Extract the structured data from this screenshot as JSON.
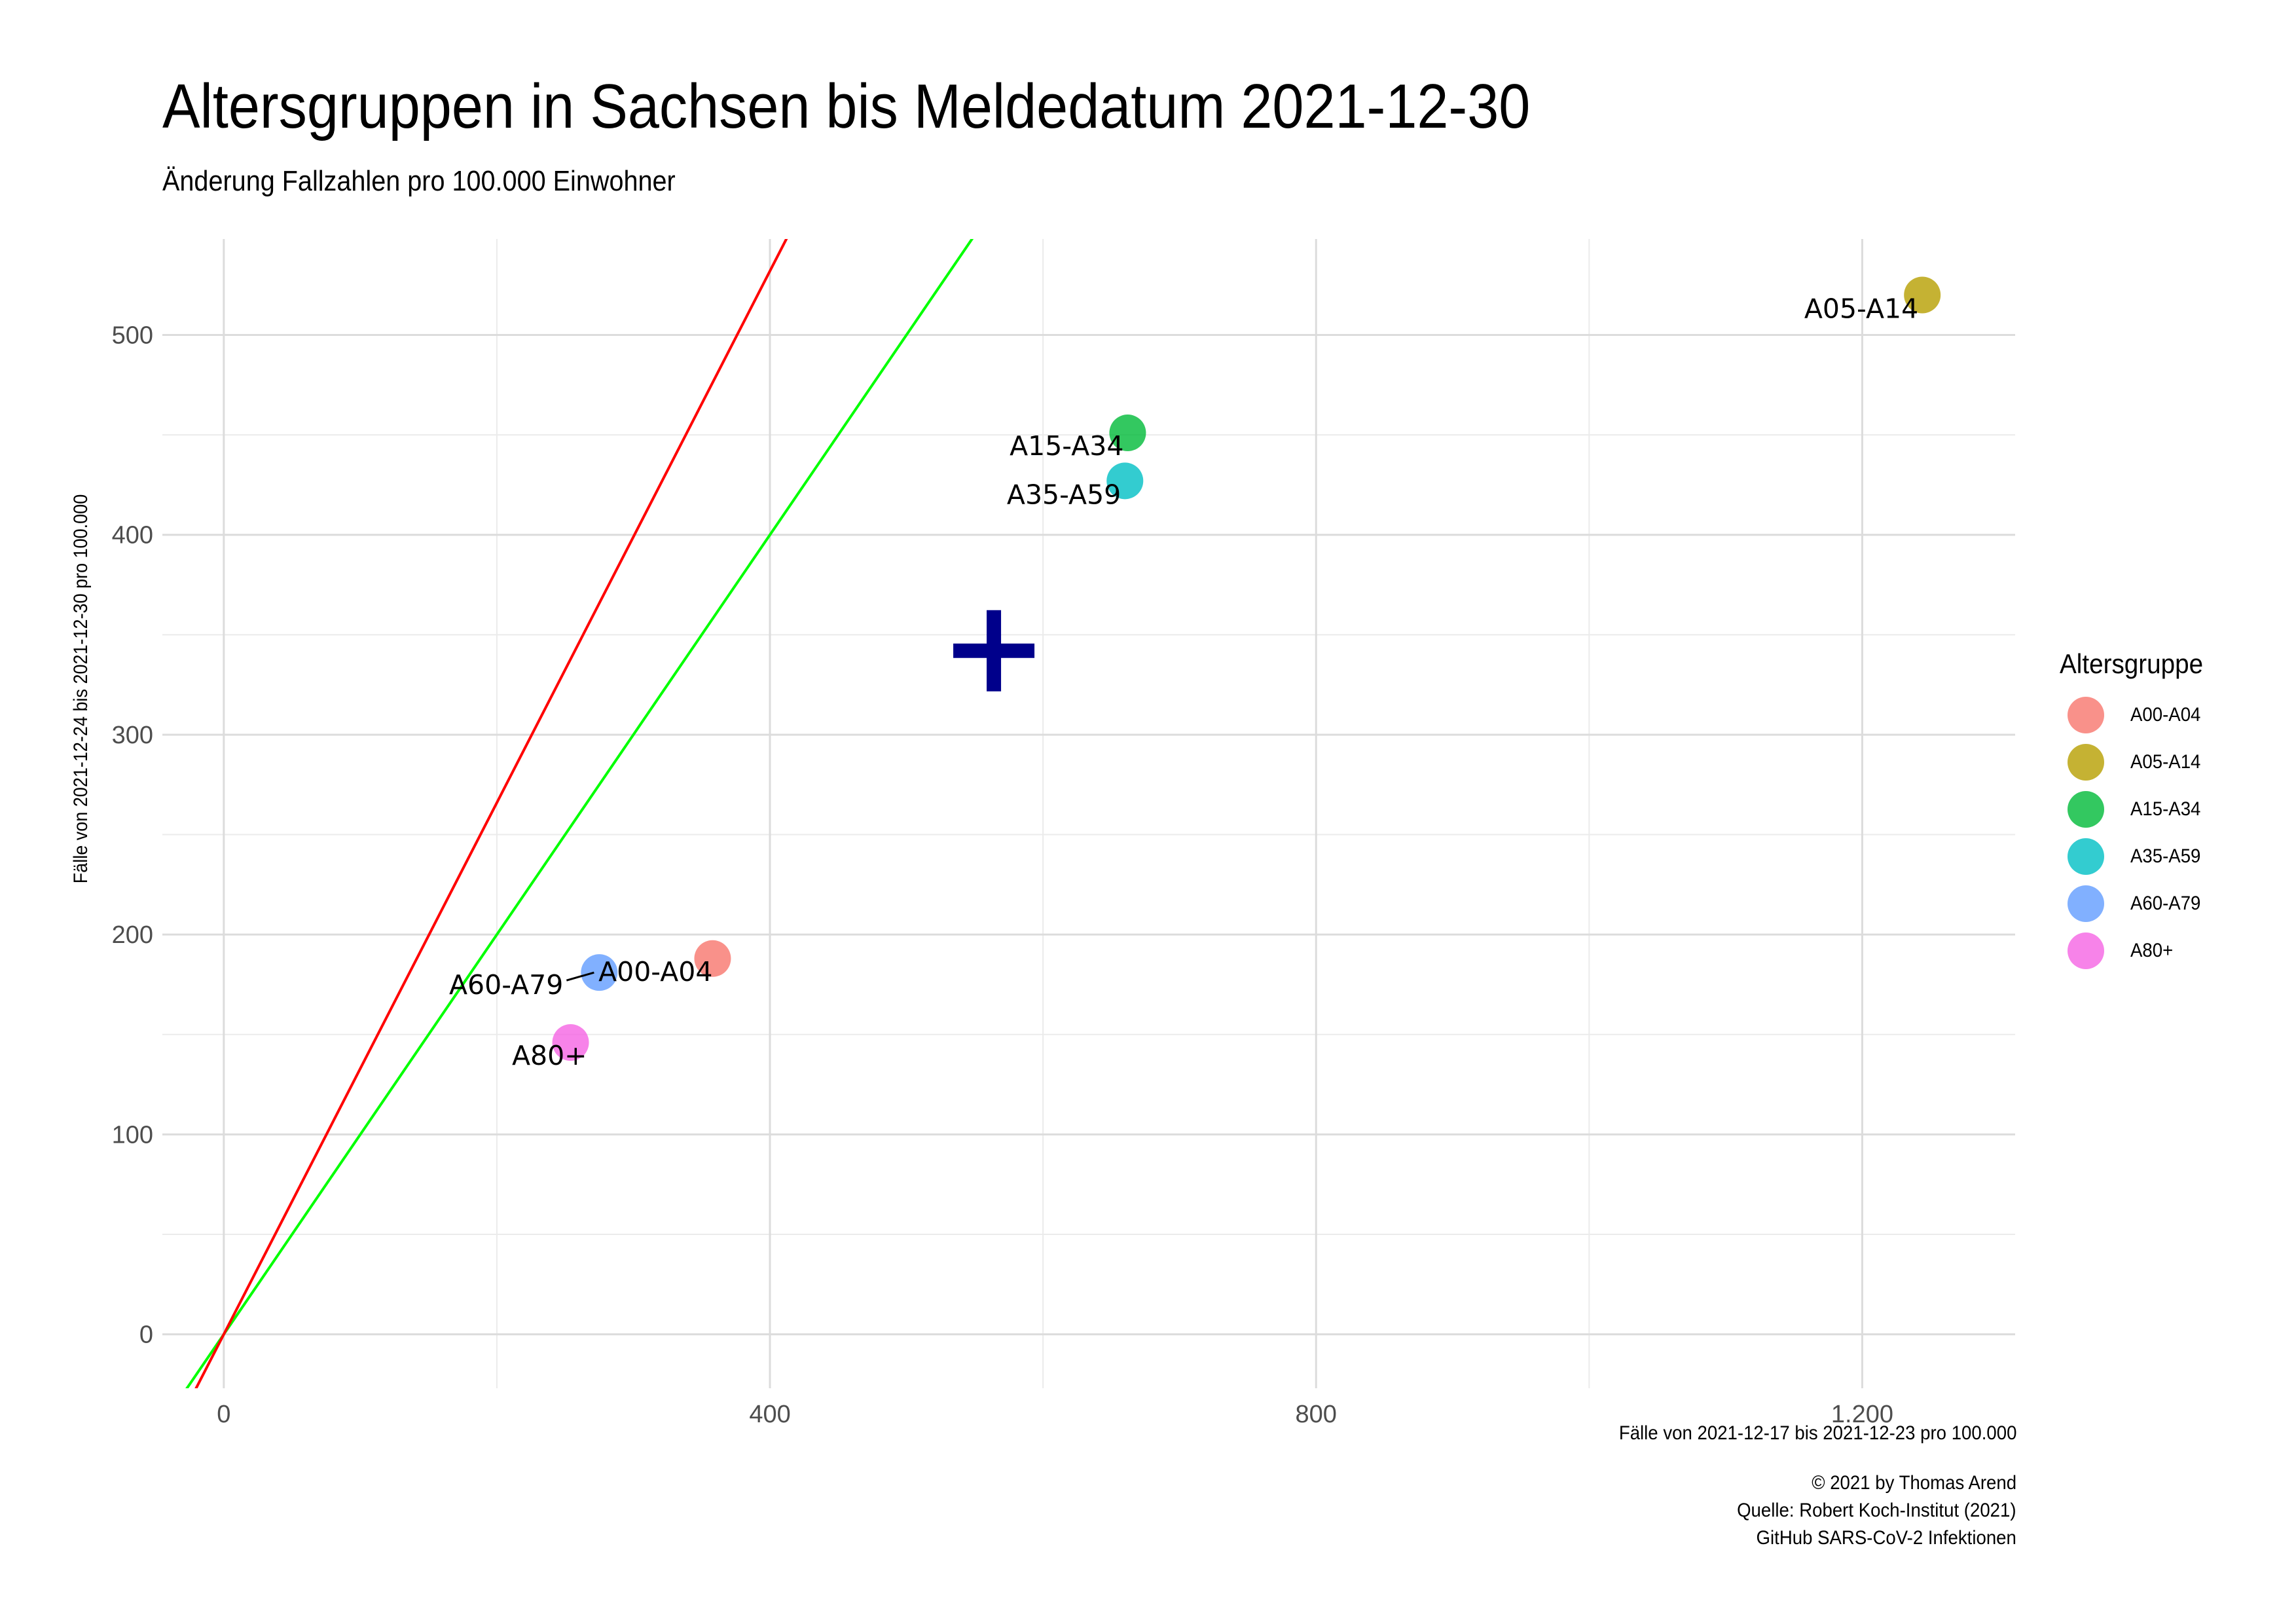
{
  "chart_data": {
    "type": "scatter",
    "title": "Altersgruppen in Sachsen bis Meldedatum 2021-12-30",
    "subtitle": "Änderung Fallzahlen pro 100.000 Einwohner",
    "xlabel": "Fälle von 2021-12-17 bis 2021-12-23 pro 100.000",
    "ylabel": "Fälle von 2021-12-24 bis 2021-12-30 pro 100.000",
    "xlim": [
      -45,
      1312
    ],
    "ylim": [
      -27,
      548
    ],
    "x_ticks": [
      {
        "value": 0,
        "label": "0"
      },
      {
        "value": 400,
        "label": "400"
      },
      {
        "value": 800,
        "label": "800"
      },
      {
        "value": 1200,
        "label": "1.200"
      }
    ],
    "y_ticks": [
      {
        "value": 0,
        "label": "0"
      },
      {
        "value": 100,
        "label": "100"
      },
      {
        "value": 200,
        "label": "200"
      },
      {
        "value": 300,
        "label": "300"
      },
      {
        "value": 400,
        "label": "400"
      },
      {
        "value": 500,
        "label": "500"
      }
    ],
    "grid": true,
    "legend": {
      "title": "Altersgruppe",
      "placement": "right",
      "entries": [
        {
          "label": "A00-A04",
          "color": "#F8766D"
        },
        {
          "label": "A05-A14",
          "color": "#B79F00"
        },
        {
          "label": "A15-A34",
          "color": "#00BA38"
        },
        {
          "label": "A35-A59",
          "color": "#00BFC4"
        },
        {
          "label": "A60-A79",
          "color": "#619CFF"
        },
        {
          "label": "A80+",
          "color": "#F564E3"
        }
      ]
    },
    "points": [
      {
        "group": "A00-A04",
        "label": "A00-A04",
        "x": 358,
        "y": 188,
        "color": "#F8766D"
      },
      {
        "group": "A05-A14",
        "label": "A05-A14",
        "x": 1244,
        "y": 520,
        "color": "#B79F00"
      },
      {
        "group": "A15-A34",
        "label": "A15-A34",
        "x": 662,
        "y": 451,
        "color": "#00BA38"
      },
      {
        "group": "A35-A59",
        "label": "A35-A59",
        "x": 660,
        "y": 427,
        "color": "#00BFC4"
      },
      {
        "group": "A60-A79",
        "label": "A60-A79",
        "x": 275,
        "y": 181,
        "color": "#619CFF"
      },
      {
        "group": "A80+",
        "label": "A80+",
        "x": 254,
        "y": 146,
        "color": "#F564E3"
      }
    ],
    "mean_marker": {
      "x": 564,
      "y": 342,
      "color": "#00008B",
      "shape": "plus"
    },
    "reference_lines": [
      {
        "slope": 1,
        "intercept": 0,
        "color": "#00FF00"
      },
      {
        "slope": 1.33,
        "intercept": 0,
        "color": "#FF0000"
      }
    ]
  },
  "caption": {
    "line1": "© 2021 by Thomas Arend",
    "line2": "Quelle: Robert Koch-Institut (2021)",
    "line3": "GitHub SARS-CoV-2 Infektionen"
  }
}
